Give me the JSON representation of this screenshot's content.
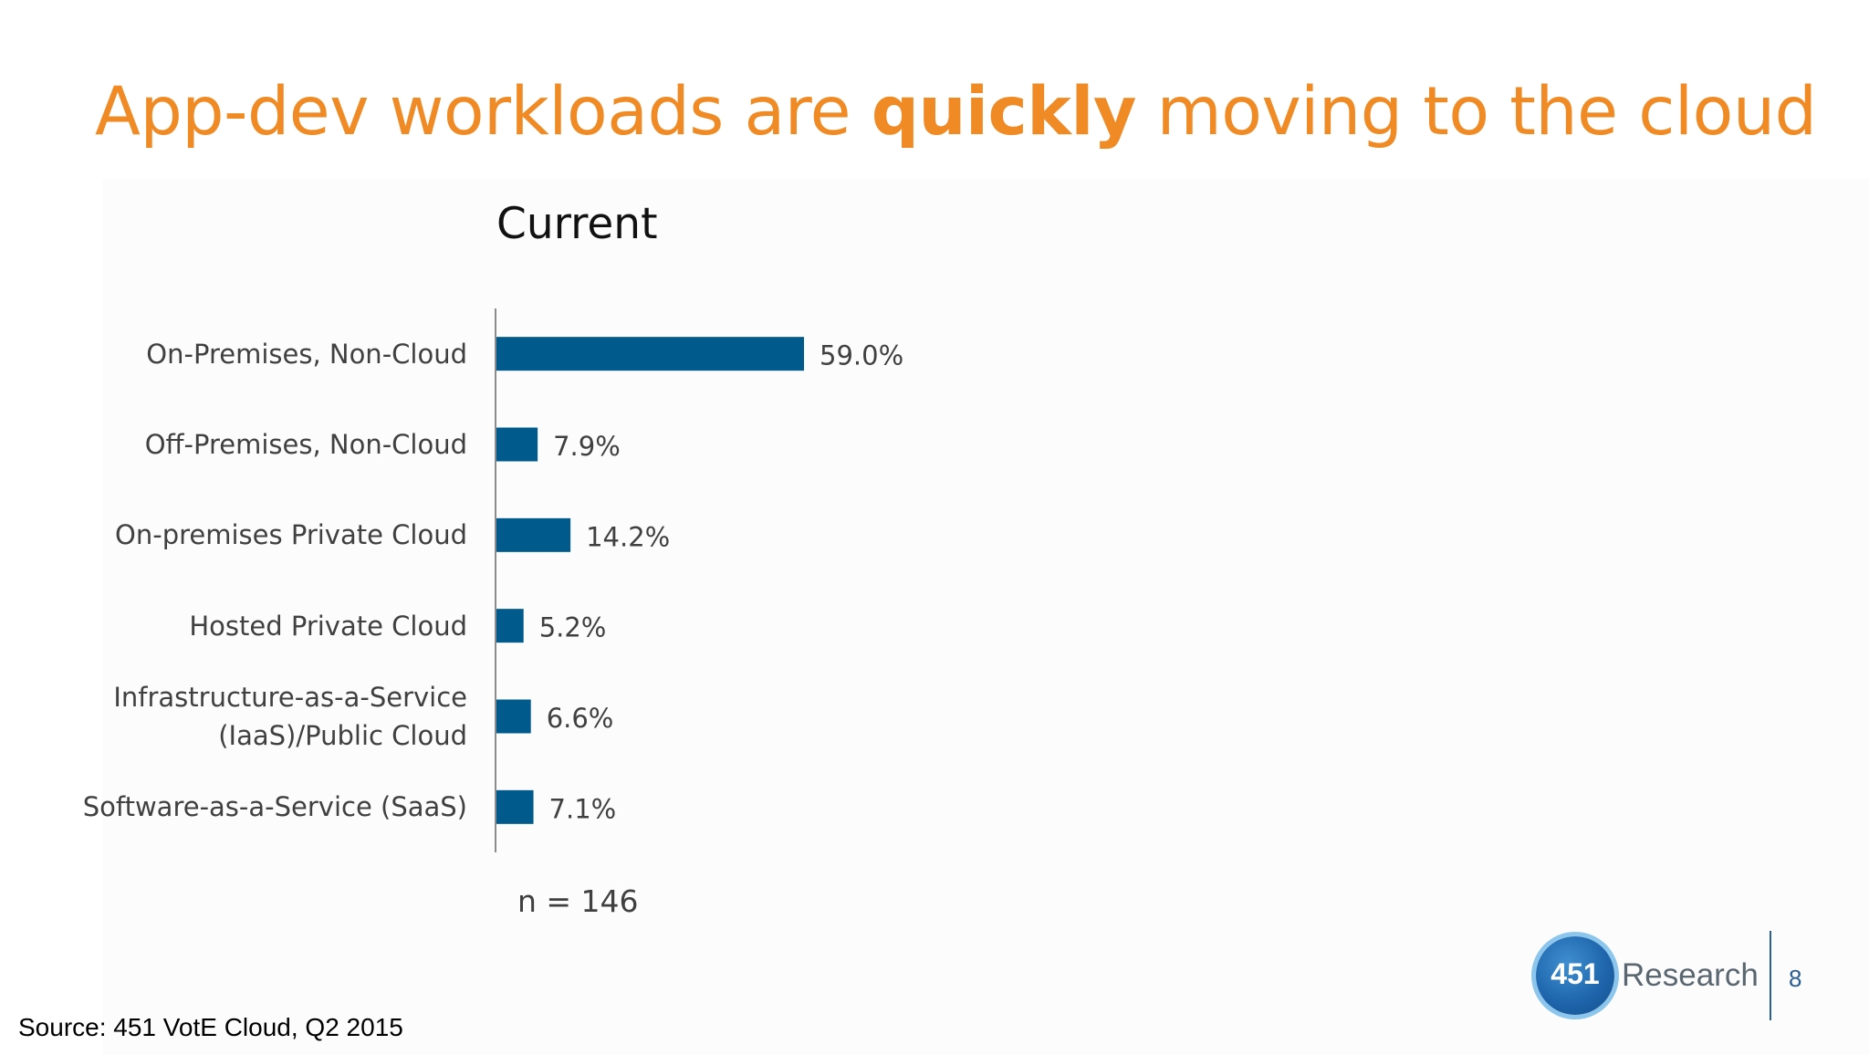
{
  "slide": {
    "title_part1": "App-dev workloads are ",
    "title_emphasis": "quickly",
    "title_part2": " moving to the cloud",
    "source": "Source: 451 VotE Cloud, Q2 2015",
    "page_number": "8"
  },
  "logo": {
    "number": "451",
    "word": "Research"
  },
  "chart_data": {
    "type": "bar",
    "orientation": "horizontal",
    "title": "Current",
    "categories": [
      "On-Premises, Non-Cloud",
      "Off-Premises, Non-Cloud",
      "On-premises Private Cloud",
      "Hosted Private Cloud",
      "Infrastructure-as-a-Service (IaaS)/Public Cloud",
      "Software-as-a-Service (SaaS)"
    ],
    "values": [
      59.0,
      7.9,
      14.2,
      5.2,
      6.6,
      7.1
    ],
    "value_labels": [
      "59.0%",
      "7.9%",
      "14.2%",
      "5.2%",
      "6.6%",
      "7.1%"
    ],
    "unit": "%",
    "bar_color": "#005a8b",
    "sample_note": "n = 146",
    "grid": false,
    "legend": "none"
  }
}
